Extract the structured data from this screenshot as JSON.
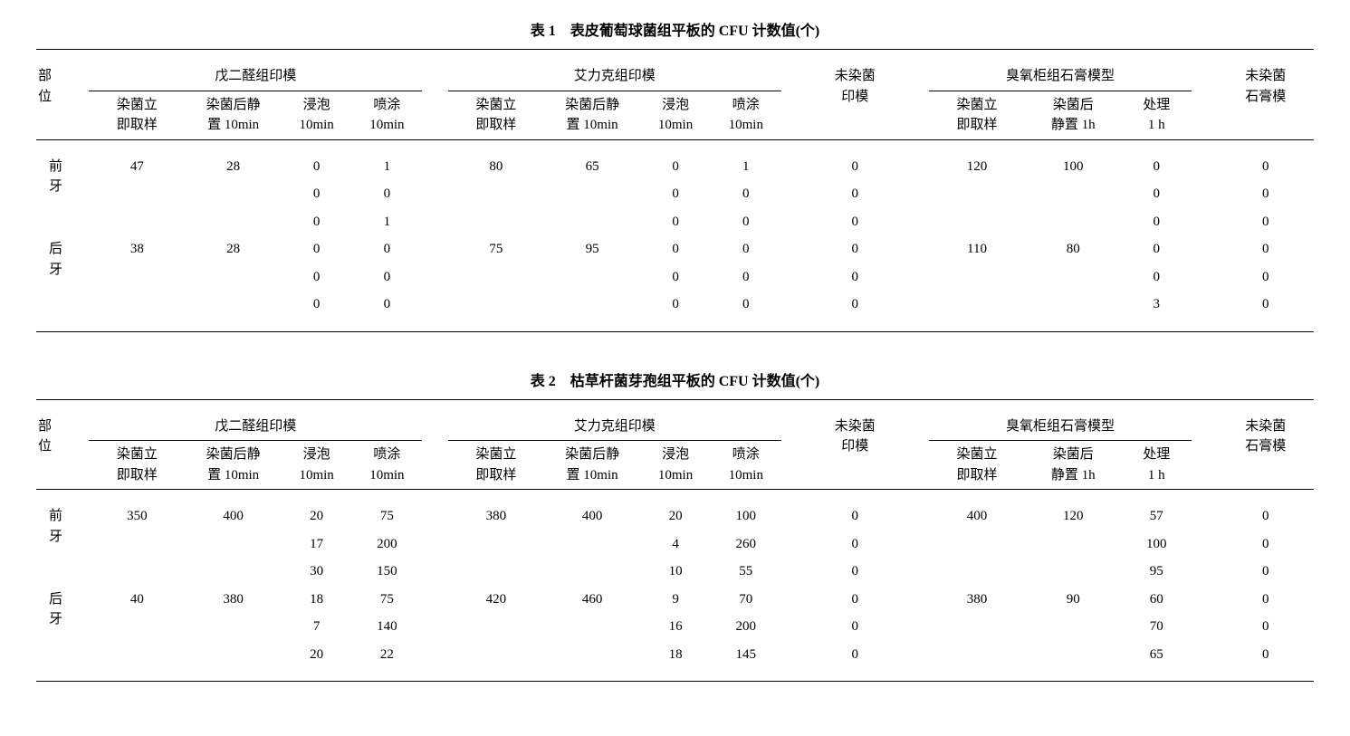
{
  "colors": {
    "text": "#000000",
    "bg": "#ffffff",
    "rule": "#000000"
  },
  "common_headers": {
    "site_label": "部\n位",
    "group_glut": "戊二醛组印模",
    "group_elk": "艾力克组印模",
    "group_ozone": "臭氧柜组石膏模型",
    "sub": {
      "immediate": "染菌立\n即取样",
      "rest10": "染菌后静\n置 10min",
      "soak10": "浸泡\n10min",
      "spray10": "喷涂\n10min",
      "uninf_imp": "未染菌\n印模",
      "immediate2": "染菌立\n即取样",
      "rest1h": "染菌后\n静置 1h",
      "treat1h": "处理\n1 h",
      "uninf_cast": "未染菌\n石膏模"
    },
    "site_front": "前\n牙",
    "site_back": "后\n牙"
  },
  "table1": {
    "title": "表 1　表皮葡萄球菌组平板的 CFU 计数值(个)",
    "rows": [
      {
        "site": "front",
        "g1": [
          "47",
          "28",
          "0",
          "1"
        ],
        "g2": [
          "80",
          "65",
          "0",
          "1"
        ],
        "uninf": "0",
        "oz": [
          "120",
          "100",
          "0"
        ],
        "ucast": "0"
      },
      {
        "site": "",
        "g1": [
          "",
          "",
          "0",
          "0"
        ],
        "g2": [
          "",
          "",
          "0",
          "0"
        ],
        "uninf": "0",
        "oz": [
          "",
          "",
          "0"
        ],
        "ucast": "0"
      },
      {
        "site": "",
        "g1": [
          "",
          "",
          "0",
          "1"
        ],
        "g2": [
          "",
          "",
          "0",
          "0"
        ],
        "uninf": "0",
        "oz": [
          "",
          "",
          "0"
        ],
        "ucast": "0"
      },
      {
        "site": "back",
        "g1": [
          "38",
          "28",
          "0",
          "0"
        ],
        "g2": [
          "75",
          "95",
          "0",
          "0"
        ],
        "uninf": "0",
        "oz": [
          "110",
          "80",
          "0"
        ],
        "ucast": "0"
      },
      {
        "site": "",
        "g1": [
          "",
          "",
          "0",
          "0"
        ],
        "g2": [
          "",
          "",
          "0",
          "0"
        ],
        "uninf": "0",
        "oz": [
          "",
          "",
          "0"
        ],
        "ucast": "0"
      },
      {
        "site": "",
        "g1": [
          "",
          "",
          "0",
          "0"
        ],
        "g2": [
          "",
          "",
          "0",
          "0"
        ],
        "uninf": "0",
        "oz": [
          "",
          "",
          "3"
        ],
        "ucast": "0"
      }
    ]
  },
  "table2": {
    "title": "表 2　枯草杆菌芽孢组平板的 CFU 计数值(个)",
    "rows": [
      {
        "site": "front",
        "g1": [
          "350",
          "400",
          "20",
          "75"
        ],
        "g2": [
          "380",
          "400",
          "20",
          "100"
        ],
        "uninf": "0",
        "oz": [
          "400",
          "120",
          "57"
        ],
        "ucast": "0"
      },
      {
        "site": "",
        "g1": [
          "",
          "",
          "17",
          "200"
        ],
        "g2": [
          "",
          "",
          "4",
          "260"
        ],
        "uninf": "0",
        "oz": [
          "",
          "",
          "100"
        ],
        "ucast": "0"
      },
      {
        "site": "",
        "g1": [
          "",
          "",
          "30",
          "150"
        ],
        "g2": [
          "",
          "",
          "10",
          "55"
        ],
        "uninf": "0",
        "oz": [
          "",
          "",
          "95"
        ],
        "ucast": "0"
      },
      {
        "site": "back",
        "g1": [
          "40",
          "380",
          "18",
          "75"
        ],
        "g2": [
          "420",
          "460",
          "9",
          "70"
        ],
        "uninf": "0",
        "oz": [
          "380",
          "90",
          "60"
        ],
        "ucast": "0"
      },
      {
        "site": "",
        "g1": [
          "",
          "",
          "7",
          "140"
        ],
        "g2": [
          "",
          "",
          "16",
          "200"
        ],
        "uninf": "0",
        "oz": [
          "",
          "",
          "70"
        ],
        "ucast": "0"
      },
      {
        "site": "",
        "g1": [
          "",
          "",
          "20",
          "22"
        ],
        "g2": [
          "",
          "",
          "18",
          "145"
        ],
        "uninf": "0",
        "oz": [
          "",
          "",
          "65"
        ],
        "ucast": "0"
      }
    ]
  }
}
